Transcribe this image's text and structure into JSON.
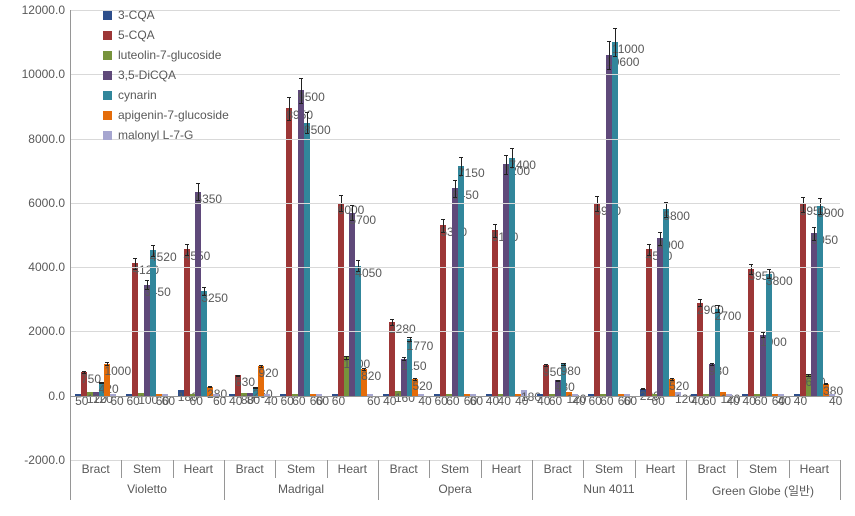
{
  "chart": {
    "type": "grouped-bar",
    "ylim": [
      -2000,
      12000
    ],
    "ytick_step": 2000,
    "ytick_decimals": 1,
    "gridline_color": "#d9d9d9",
    "zero_line_color": "#969696",
    "axis_line_color": "#969696",
    "background_color": "#ffffff",
    "label_color": "#595959",
    "label_fontsize": 12,
    "err_rel": 0.04,
    "series": [
      {
        "name": "3-CQA",
        "color": "#2d4e8b"
      },
      {
        "name": "5-CQA",
        "color": "#9c3636"
      },
      {
        "name": "luteolin-7-glucoside",
        "color": "#77933c"
      },
      {
        "name": "3,5-DiCQA",
        "color": "#5f497a"
      },
      {
        "name": "cynarin",
        "color": "#31869b"
      },
      {
        "name": "apigenin-7-glucoside",
        "color": "#e46c0a"
      },
      {
        "name": "malonyl L-7-G",
        "color": "#a6a6d0"
      }
    ],
    "cultivars": [
      {
        "label": "Violetto",
        "parts": [
          {
            "label": "Bract",
            "values": [
              50,
              750,
              120,
              120,
              420,
              1000,
              60
            ]
          },
          {
            "label": "Stem",
            "values": [
              60,
              4120,
              100,
              3450,
              4520,
              60,
              60
            ]
          },
          {
            "label": "Heart",
            "values": [
              180,
              4550,
              60,
              6350,
              3250,
              280,
              60
            ]
          }
        ]
      },
      {
        "label": "Madrigal",
        "parts": [
          {
            "label": "Bract",
            "values": [
              40,
              630,
              80,
              80,
              260,
              920,
              40
            ]
          },
          {
            "label": "Stem",
            "values": [
              60,
              8950,
              60,
              9500,
              8500,
              60,
              60
            ]
          },
          {
            "label": "Heart",
            "values": [
              60,
              6000,
              1200,
              5700,
              4050,
              820,
              60
            ]
          }
        ]
      },
      {
        "label": "Opera",
        "parts": [
          {
            "label": "Bract",
            "values": [
              40,
              2280,
              160,
              1150,
              1770,
              520,
              40
            ]
          },
          {
            "label": "Stem",
            "values": [
              60,
              5300,
              60,
              6450,
              7150,
              60,
              60
            ]
          },
          {
            "label": "Heart",
            "values": [
              40,
              5150,
              40,
              7200,
              7400,
              40,
              180
            ]
          }
        ]
      },
      {
        "label": "Nun 4011",
        "parts": [
          {
            "label": "Bract",
            "values": [
              40,
              950,
              60,
              480,
              980,
              120,
              40
            ]
          },
          {
            "label": "Stem",
            "values": [
              60,
              5980,
              60,
              10600,
              11000,
              60,
              60
            ]
          },
          {
            "label": "Heart",
            "values": [
              220,
              4550,
              60,
              4900,
              5800,
              520,
              120
            ]
          }
        ]
      },
      {
        "label": "Green Globe (일반)",
        "parts": [
          {
            "label": "Bract",
            "values": [
              40,
              2900,
              60,
              980,
              2700,
              120,
              40
            ]
          },
          {
            "label": "Stem",
            "values": [
              40,
              3950,
              60,
              1900,
              3800,
              60,
              40
            ]
          },
          {
            "label": "Heart",
            "values": [
              40,
              5950,
              640,
              5050,
              5900,
              380,
              40
            ]
          }
        ]
      }
    ]
  }
}
